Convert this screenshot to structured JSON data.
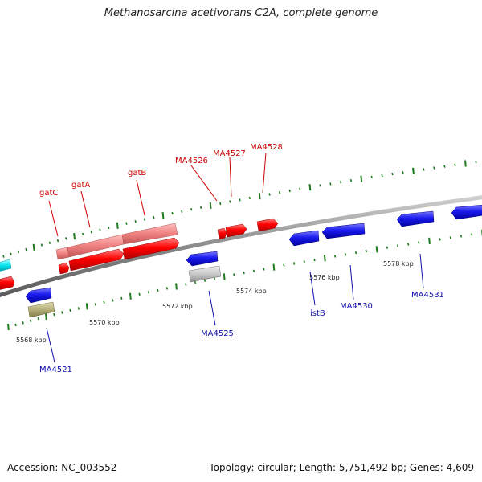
{
  "title": "Methanosarcina acetivorans C2A, complete genome",
  "accession": "Accession: NC_003552",
  "summary": "Topology: circular; Length: 5,751,492 bp; Genes: 4,609",
  "colors": {
    "backbone": "#8a8a8a",
    "tick": "#1f7a1f",
    "plus_label": "#cc0000",
    "minus_label": "#1010aa",
    "red": "#ff0000",
    "pink": "#f08080",
    "blue": "#1a1aee",
    "cyan": "#00e5ee",
    "gray": "#c8c8c8",
    "olive": "#b5b07a"
  },
  "scale_labels": [
    {
      "text": "5568 kbp",
      "kbp": 5568
    },
    {
      "text": "5570 kbp",
      "kbp": 5570
    },
    {
      "text": "5572 kbp",
      "kbp": 5572
    },
    {
      "text": "5574 kbp",
      "kbp": 5574
    },
    {
      "text": "5576 kbp",
      "kbp": 5576
    },
    {
      "text": "5578 kbp",
      "kbp": 5578
    }
  ],
  "genes_plus": [
    {
      "label": "gatC"
    },
    {
      "label": "gatA"
    },
    {
      "label": "gatB"
    },
    {
      "label": "MA4526"
    },
    {
      "label": "MA4527"
    },
    {
      "label": "MA4528"
    }
  ],
  "genes_minus": [
    {
      "label": "MA4521"
    },
    {
      "label": "MA4525"
    },
    {
      "label": "istB"
    },
    {
      "label": "MA4530"
    },
    {
      "label": "MA4531"
    }
  ]
}
